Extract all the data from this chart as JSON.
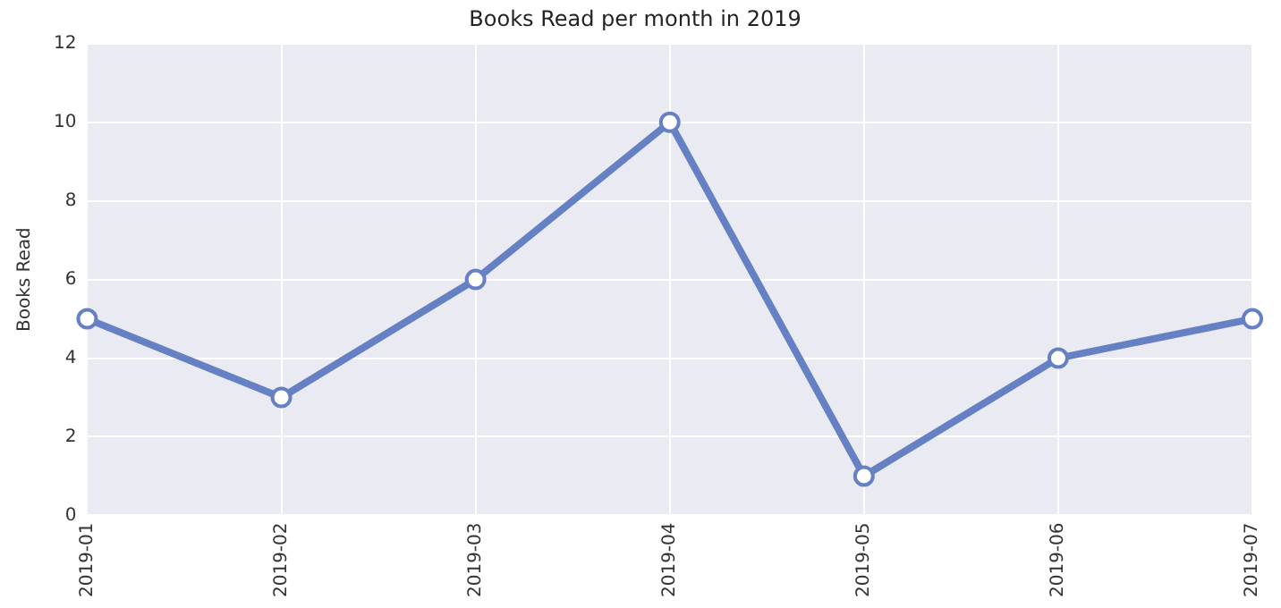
{
  "chart_data": {
    "type": "line",
    "title": "Books Read per month in 2019",
    "ylabel": "Books Read",
    "categories": [
      "2019-01",
      "2019-02",
      "2019-03",
      "2019-04",
      "2019-05",
      "2019-06",
      "2019-07"
    ],
    "series": [
      {
        "color": "#6581c4",
        "values": [
          5,
          3,
          6,
          10,
          1,
          4,
          5
        ]
      }
    ],
    "ylim": [
      0,
      12
    ],
    "yticks": [
      0,
      2,
      4,
      6,
      8,
      10,
      12
    ],
    "grid": true,
    "legend": false,
    "marker": "circle",
    "line_style": "solid"
  }
}
